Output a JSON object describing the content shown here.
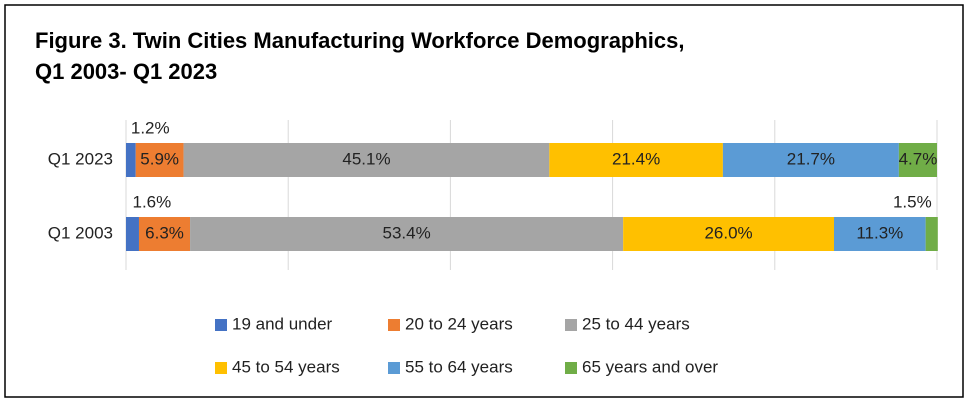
{
  "chart_data": {
    "type": "stacked_bar_horizontal",
    "title": [
      "Figure 3. Twin Cities Manufacturing Workforce Demographics,",
      "Q1 2003- Q1 2023"
    ],
    "categories": [
      "Q1 2023",
      "Q1 2003"
    ],
    "series": [
      {
        "name": "19 and under",
        "color": "#4472c4",
        "values": [
          1.2,
          1.6
        ],
        "value_labels": [
          "1.2%",
          "1.6%"
        ]
      },
      {
        "name": "20 to 24 years",
        "color": "#ed7d31",
        "values": [
          5.9,
          6.3
        ],
        "value_labels": [
          "5.9%",
          "6.3%"
        ]
      },
      {
        "name": "25 to 44 years",
        "color": "#a5a5a5",
        "values": [
          45.1,
          53.4
        ],
        "value_labels": [
          "45.1%",
          "53.4%"
        ]
      },
      {
        "name": "45 to 54 years",
        "color": "#ffc000",
        "values": [
          21.4,
          26.0
        ],
        "value_labels": [
          "21.4%",
          "26.0%"
        ]
      },
      {
        "name": "55 to 64 years",
        "color": "#5b9bd5",
        "values": [
          21.7,
          11.3
        ],
        "value_labels": [
          "21.7%",
          "11.3%"
        ]
      },
      {
        "name": "65 years and over",
        "color": "#70ad47",
        "values": [
          4.7,
          1.5
        ],
        "value_labels": [
          "4.7%",
          "1.5%"
        ]
      }
    ],
    "xlim": [
      0,
      100
    ],
    "xticks": [
      0,
      20,
      40,
      60,
      80,
      100
    ],
    "grid": true,
    "legend": "bottom"
  }
}
